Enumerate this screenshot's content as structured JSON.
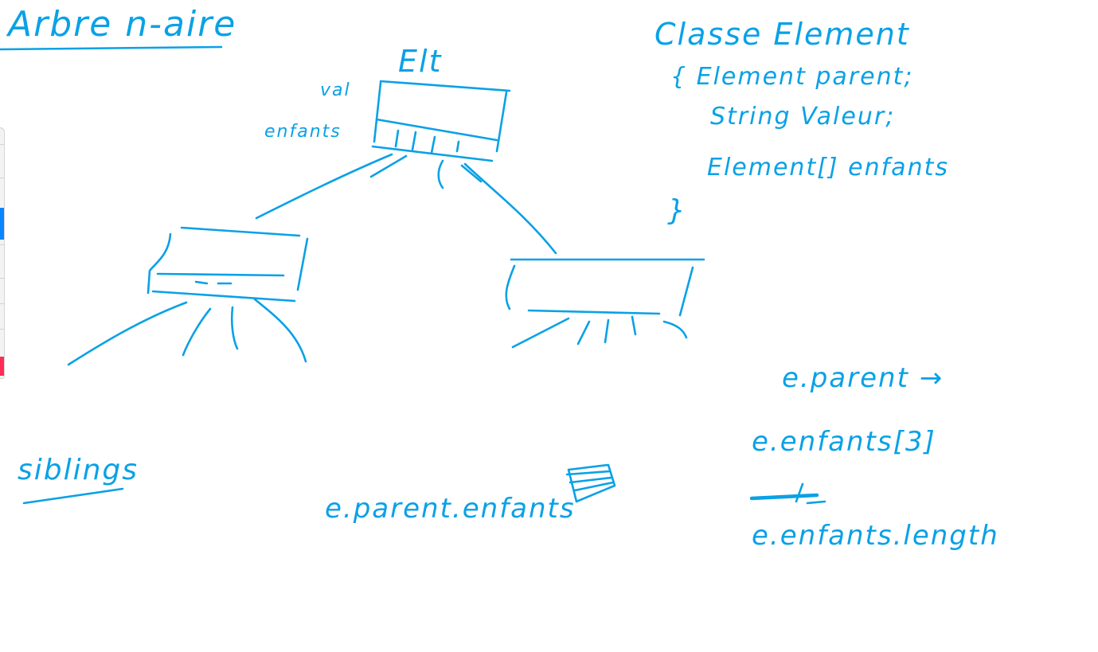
{
  "title": "Arbre n-aire",
  "tree": {
    "root_label": "Elt",
    "field_val": "val",
    "field_enfants": "enfants"
  },
  "class_def": {
    "header": "Classe Element",
    "line1": "{ Element parent;",
    "line2": "String Valeur;",
    "line3": "Element[] enfants",
    "closing": "}"
  },
  "notes": {
    "siblings": "siblings",
    "parent_enfants": "e.parent.enfants",
    "parent_arrow": "e.parent →",
    "enfants_index": "e.enfants[3]",
    "enfants_length": "e.enfants.length"
  },
  "colors": {
    "ink": "#0aa1e6",
    "swatch_blue": "#0a84ff",
    "swatch_pink": "#ff2d55"
  },
  "left_toolbar": {
    "swatches": [
      "swatch_blue",
      "swatch_pink"
    ]
  }
}
